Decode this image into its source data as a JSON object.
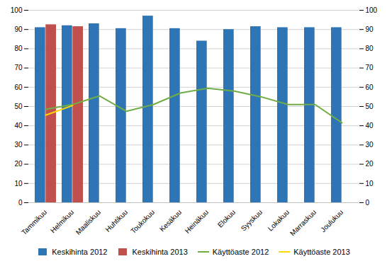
{
  "chart_data": {
    "type": "bar",
    "categories": [
      "Tammikuu",
      "Helmikuu",
      "Maaliskuu",
      "Huhtikuu",
      "Toukokuu",
      "Kesäkuu",
      "Heinäkuu",
      "Elokuu",
      "Syyskuu",
      "Lokakuu",
      "Marraskuu",
      "Joulukuu"
    ],
    "series": [
      {
        "name": "Keskihinta 2012",
        "type": "bar",
        "color": "#2E75B6",
        "values": [
          91,
          92,
          93,
          90.5,
          97,
          90.5,
          84,
          90,
          91.5,
          91,
          91,
          91
        ]
      },
      {
        "name": "Keskihinta 2013",
        "type": "bar",
        "color": "#C0504D",
        "values": [
          92.5,
          91.5,
          null,
          null,
          null,
          null,
          null,
          null,
          null,
          null,
          null,
          null
        ]
      },
      {
        "name": "Käyttöaste 2012",
        "type": "line",
        "axis": "y2",
        "color": "#70AD47",
        "values": [
          48.5,
          51,
          55.5,
          47.5,
          51,
          57,
          59.5,
          58,
          55,
          51,
          51,
          41.5
        ]
      },
      {
        "name": "Käyttöaste 2013",
        "type": "line",
        "axis": "y2",
        "color": "#FFD700",
        "values": [
          45.5,
          50.5,
          null,
          null,
          null,
          null,
          null,
          null,
          null,
          null,
          null,
          null
        ]
      }
    ],
    "ylim": [
      0,
      100
    ],
    "yticks": [
      0,
      10,
      20,
      30,
      40,
      50,
      60,
      70,
      80,
      90,
      100
    ],
    "y2lim": [
      0,
      100
    ],
    "y2ticks": [
      0,
      10,
      20,
      30,
      40,
      50,
      60,
      70,
      80,
      90,
      100
    ],
    "grid": true,
    "legend": "bottom"
  }
}
